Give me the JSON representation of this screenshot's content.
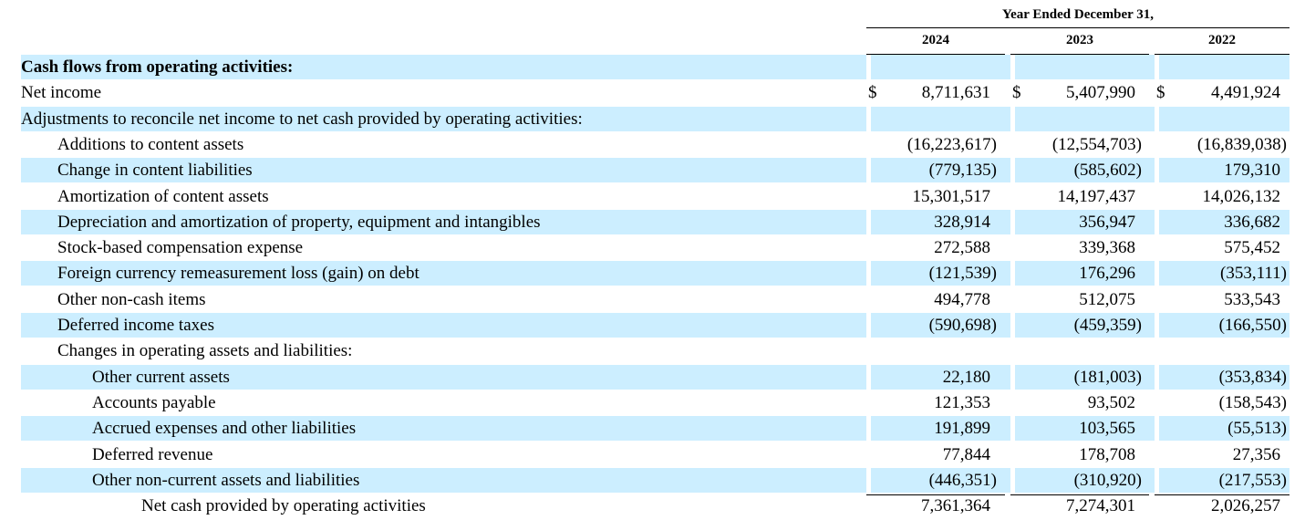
{
  "header": {
    "group_label": "Year Ended December 31,",
    "years": [
      "2024",
      "2023",
      "2022"
    ]
  },
  "rows": [
    {
      "label": "Cash flows from operating activities:",
      "indent": 0,
      "bold": true,
      "shade": true,
      "values": [
        "",
        "",
        ""
      ]
    },
    {
      "label": "Net income",
      "indent": 0,
      "bold": false,
      "shade": false,
      "currency": "$",
      "values": [
        "8,711,631",
        "5,407,990",
        "4,491,924"
      ]
    },
    {
      "label": "Adjustments to reconcile net income to net cash provided by operating activities:",
      "indent": 0,
      "bold": false,
      "shade": true,
      "values": [
        "",
        "",
        ""
      ]
    },
    {
      "label": "Additions to content assets",
      "indent": 1,
      "bold": false,
      "shade": false,
      "values": [
        "(16,223,617)",
        "(12,554,703)",
        "(16,839,038)"
      ]
    },
    {
      "label": "Change in content liabilities",
      "indent": 1,
      "bold": false,
      "shade": true,
      "values": [
        "(779,135)",
        "(585,602)",
        "179,310"
      ]
    },
    {
      "label": "Amortization of content assets",
      "indent": 1,
      "bold": false,
      "shade": false,
      "values": [
        "15,301,517",
        "14,197,437",
        "14,026,132"
      ]
    },
    {
      "label": "Depreciation and amortization of property, equipment and intangibles",
      "indent": 1,
      "bold": false,
      "shade": true,
      "values": [
        "328,914",
        "356,947",
        "336,682"
      ]
    },
    {
      "label": "Stock-based compensation expense",
      "indent": 1,
      "bold": false,
      "shade": false,
      "values": [
        "272,588",
        "339,368",
        "575,452"
      ]
    },
    {
      "label": "Foreign currency remeasurement loss (gain) on debt",
      "indent": 1,
      "bold": false,
      "shade": true,
      "values": [
        "(121,539)",
        "176,296",
        "(353,111)"
      ]
    },
    {
      "label": "Other non-cash items",
      "indent": 1,
      "bold": false,
      "shade": false,
      "values": [
        "494,778",
        "512,075",
        "533,543"
      ]
    },
    {
      "label": "Deferred income taxes",
      "indent": 1,
      "bold": false,
      "shade": true,
      "values": [
        "(590,698)",
        "(459,359)",
        "(166,550)"
      ]
    },
    {
      "label": "Changes in operating assets and liabilities:",
      "indent": 1,
      "bold": false,
      "shade": false,
      "values": [
        "",
        "",
        ""
      ]
    },
    {
      "label": "Other current assets",
      "indent": 2,
      "bold": false,
      "shade": true,
      "values": [
        "22,180",
        "(181,003)",
        "(353,834)"
      ]
    },
    {
      "label": "Accounts payable",
      "indent": 2,
      "bold": false,
      "shade": false,
      "values": [
        "121,353",
        "93,502",
        "(158,543)"
      ]
    },
    {
      "label": "Accrued expenses and other liabilities",
      "indent": 2,
      "bold": false,
      "shade": true,
      "values": [
        "191,899",
        "103,565",
        "(55,513)"
      ]
    },
    {
      "label": "Deferred revenue",
      "indent": 2,
      "bold": false,
      "shade": false,
      "values": [
        "77,844",
        "178,708",
        "27,356"
      ]
    },
    {
      "label": "Other non-current assets and liabilities",
      "indent": 2,
      "bold": false,
      "shade": true,
      "values": [
        "(446,351)",
        "(310,920)",
        "(217,553)"
      ]
    },
    {
      "label": "Net cash provided by operating activities",
      "indent": 3,
      "bold": false,
      "shade": false,
      "values": [
        "7,361,364",
        "7,274,301",
        "2,026,257"
      ]
    }
  ],
  "colors": {
    "shade": "#cceeff"
  }
}
